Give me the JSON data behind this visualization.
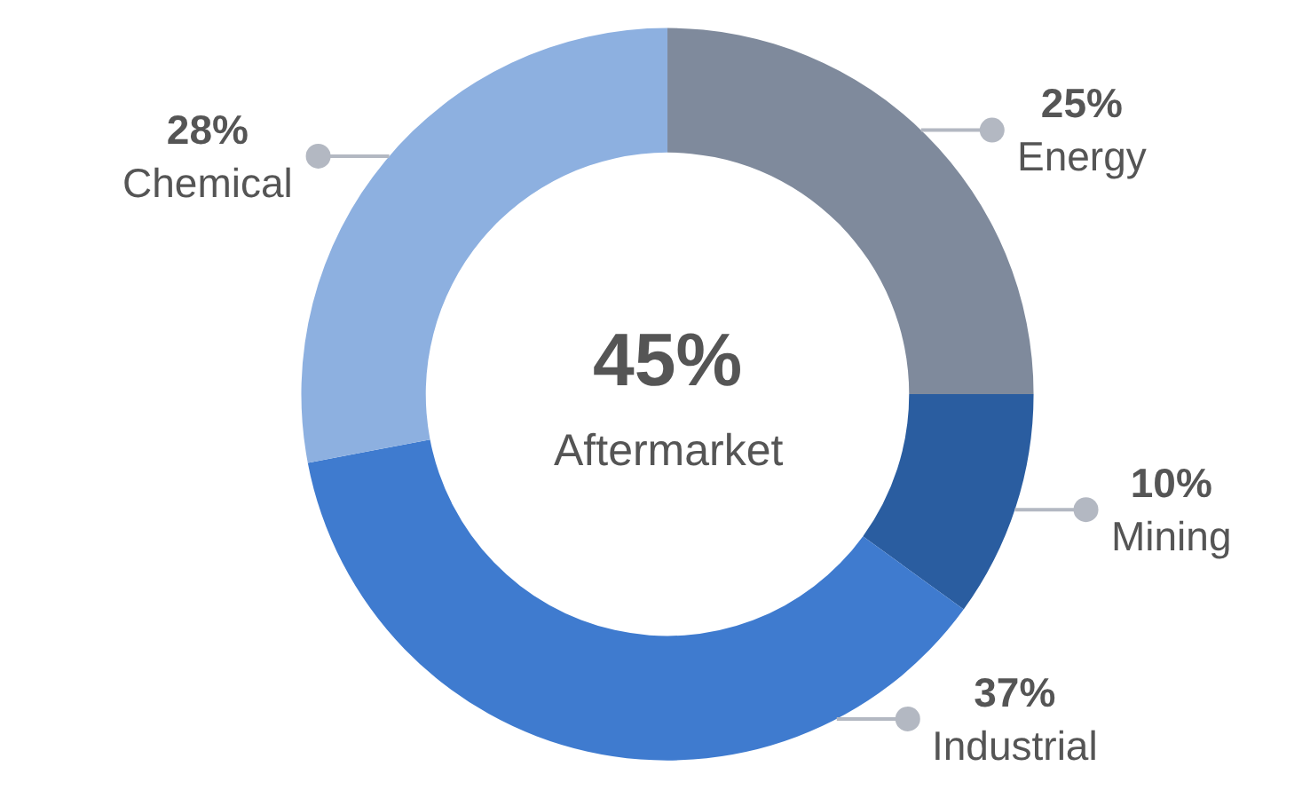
{
  "chart_data": {
    "type": "donut",
    "categories": [
      "Energy",
      "Mining",
      "Industrial",
      "Chemical"
    ],
    "values": [
      25,
      10,
      37,
      28
    ],
    "value_labels": [
      "25%",
      "10%",
      "37%",
      "28%"
    ],
    "colors": [
      "#7f8a9c",
      "#2a5da0",
      "#3f7bcf",
      "#8db0e0"
    ],
    "annotations": [
      "45%",
      "Aftermarket"
    ],
    "legend": false
  }
}
